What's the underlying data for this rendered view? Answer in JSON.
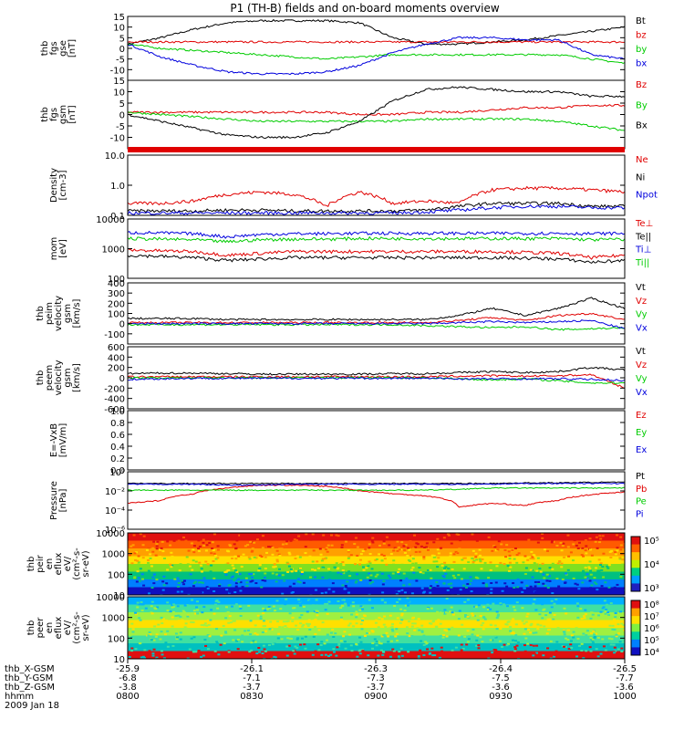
{
  "title": "P1 (TH-B) fields and on-board moments overview",
  "colors": {
    "black": "#000000",
    "red": "#e00000",
    "green": "#00cc00",
    "blue": "#0000dd",
    "frame": "#000000"
  },
  "chart_data": [
    {
      "type": "line",
      "id": "fgs_gse",
      "ylabel": [
        "thb",
        "fgs",
        "gse",
        "[nT]"
      ],
      "ylim": [
        -15,
        15
      ],
      "ticks": [
        -10,
        -5,
        0,
        5,
        10,
        15
      ],
      "series": [
        {
          "name": "Bt",
          "color": "#000000",
          "values": [
            2,
            5,
            9,
            12,
            13,
            13,
            13,
            12,
            5,
            2,
            2,
            3,
            4,
            6,
            8,
            10
          ]
        },
        {
          "name": "bz",
          "color": "#e00000",
          "values": [
            3,
            3,
            3,
            3,
            3,
            3,
            3,
            3,
            3,
            3,
            3,
            3,
            3,
            3,
            3,
            3
          ]
        },
        {
          "name": "by",
          "color": "#00cc00",
          "values": [
            2,
            0,
            -1,
            -2,
            -3,
            -4,
            -5,
            -4,
            -3,
            -3,
            -3,
            -3,
            -3,
            -3,
            -5,
            -7
          ]
        },
        {
          "name": "bx",
          "color": "#0000dd",
          "values": [
            2,
            -4,
            -8,
            -11,
            -12,
            -12,
            -11,
            -8,
            -2,
            2,
            5,
            5,
            4,
            4,
            -3,
            -5
          ]
        }
      ]
    },
    {
      "type": "line",
      "id": "fgs_gsm",
      "ylabel": [
        "thb",
        "fgs",
        "gsm",
        "[nT]"
      ],
      "ylim": [
        -15,
        15
      ],
      "ticks": [
        -10,
        -5,
        0,
        5,
        10,
        15
      ],
      "series": [
        {
          "name": "Bz",
          "color": "#e00000",
          "values": [
            1,
            1,
            1,
            1,
            1,
            1,
            1,
            0,
            0,
            1,
            1,
            2,
            3,
            3,
            4,
            4
          ]
        },
        {
          "name": "By",
          "color": "#00cc00",
          "values": [
            1,
            0,
            -1,
            -2,
            -3,
            -3,
            -3,
            -3,
            -3,
            -2,
            -2,
            -2,
            -2,
            -3,
            -5,
            -7
          ]
        },
        {
          "name": "Bx",
          "color": "#000000",
          "values": [
            0,
            -3,
            -6,
            -9,
            -10,
            -10,
            -8,
            -3,
            6,
            11,
            12,
            11,
            10,
            10,
            8,
            8
          ]
        }
      ]
    },
    {
      "type": "line",
      "id": "density",
      "scale": "log",
      "ylabel": [
        "Density",
        "[cm-3]"
      ],
      "ylim": [
        0.1,
        10
      ],
      "ticks": [
        "0.1",
        "1.0",
        "10.0"
      ],
      "series": [
        {
          "name": "Ne",
          "color": "#e00000",
          "values": [
            0.25,
            0.25,
            0.3,
            0.5,
            0.6,
            0.5,
            0.2,
            0.6,
            0.25,
            0.3,
            0.25,
            0.7,
            0.8,
            0.8,
            0.7,
            0.6
          ]
        },
        {
          "name": "Ni",
          "color": "#000000",
          "values": [
            0.14,
            0.14,
            0.14,
            0.15,
            0.15,
            0.14,
            0.14,
            0.14,
            0.14,
            0.15,
            0.2,
            0.25,
            0.25,
            0.25,
            0.2,
            0.2
          ]
        },
        {
          "name": "Npot",
          "color": "#0000dd",
          "values": [
            0.12,
            0.12,
            0.12,
            0.12,
            0.12,
            0.12,
            0.12,
            0.12,
            0.12,
            0.13,
            0.15,
            0.18,
            0.2,
            0.2,
            0.18,
            0.18
          ]
        }
      ]
    },
    {
      "type": "line",
      "id": "temperature",
      "scale": "log",
      "ylabel": [
        "mom",
        "[eV]"
      ],
      "ylim": [
        100,
        10000
      ],
      "ticks": [
        "100",
        "1000",
        "10000"
      ],
      "series": [
        {
          "name": "Te⊥",
          "color": "#e00000",
          "values": [
            900,
            850,
            800,
            600,
            700,
            800,
            800,
            800,
            800,
            800,
            800,
            800,
            750,
            700,
            500,
            600
          ]
        },
        {
          "name": "Te||",
          "color": "#000000",
          "values": [
            600,
            550,
            500,
            400,
            450,
            500,
            500,
            500,
            500,
            500,
            500,
            500,
            480,
            450,
            350,
            400
          ]
        },
        {
          "name": "Ti⊥",
          "color": "#0000dd",
          "values": [
            3500,
            3400,
            3200,
            2500,
            3000,
            3200,
            3200,
            3300,
            3300,
            3300,
            3300,
            3300,
            3300,
            3300,
            3200,
            3300
          ]
        },
        {
          "name": "Ti||",
          "color": "#00cc00",
          "values": [
            2200,
            2100,
            2000,
            1700,
            2000,
            2100,
            2100,
            2200,
            2200,
            2200,
            2200,
            2200,
            2200,
            2200,
            2000,
            2100
          ]
        }
      ]
    },
    {
      "type": "line",
      "id": "peim_velocity",
      "ylabel": [
        "thb",
        "peim",
        "velocity",
        "gsm",
        "[km/s]"
      ],
      "ylim": [
        -200,
        400
      ],
      "ticks": [
        -100,
        0,
        100,
        200,
        300,
        400
      ],
      "series": [
        {
          "name": "Vt",
          "color": "#000000",
          "values": [
            50,
            50,
            50,
            40,
            40,
            40,
            40,
            40,
            40,
            40,
            80,
            150,
            80,
            150,
            250,
            150
          ]
        },
        {
          "name": "Vz",
          "color": "#e00000",
          "values": [
            10,
            10,
            10,
            10,
            10,
            10,
            10,
            10,
            10,
            10,
            30,
            60,
            30,
            80,
            100,
            40
          ]
        },
        {
          "name": "Vy",
          "color": "#00cc00",
          "values": [
            -10,
            -10,
            -10,
            -10,
            -10,
            -10,
            -10,
            -10,
            -10,
            -20,
            -30,
            -40,
            -30,
            -60,
            -50,
            -40
          ]
        },
        {
          "name": "Vx",
          "color": "#0000dd",
          "values": [
            0,
            0,
            0,
            0,
            0,
            0,
            0,
            0,
            0,
            0,
            10,
            20,
            10,
            20,
            30,
            -50
          ]
        }
      ]
    },
    {
      "type": "line",
      "id": "peem_velocity",
      "ylabel": [
        "thb",
        "peem",
        "velocity",
        "gsm",
        "[km/s]"
      ],
      "ylim": [
        -600,
        600
      ],
      "ticks": [
        -600,
        -400,
        -200,
        0,
        200,
        400,
        600
      ],
      "series": [
        {
          "name": "Vt",
          "color": "#000000",
          "values": [
            80,
            90,
            90,
            80,
            70,
            70,
            70,
            70,
            80,
            80,
            100,
            120,
            100,
            120,
            200,
            150
          ]
        },
        {
          "name": "Vz",
          "color": "#e00000",
          "values": [
            20,
            20,
            20,
            20,
            20,
            20,
            20,
            20,
            20,
            20,
            30,
            40,
            30,
            40,
            60,
            -200
          ]
        },
        {
          "name": "Vy",
          "color": "#00cc00",
          "values": [
            0,
            0,
            0,
            0,
            0,
            0,
            0,
            0,
            0,
            0,
            -20,
            -40,
            -20,
            -60,
            -100,
            -100
          ]
        },
        {
          "name": "Vx",
          "color": "#0000dd",
          "values": [
            -30,
            -20,
            -10,
            -10,
            -10,
            -10,
            -10,
            -10,
            -10,
            -10,
            -20,
            -20,
            -20,
            -20,
            -30,
            -50
          ]
        }
      ]
    },
    {
      "type": "line",
      "id": "e_vxb",
      "ylabel": [
        "E=-VxB",
        "[mV/m]"
      ],
      "ylim": [
        0,
        1
      ],
      "ticks": [
        "0.0",
        "0.2",
        "0.4",
        "0.6",
        "0.8",
        "1.0"
      ],
      "series": [
        {
          "name": "Ez",
          "color": "#e00000",
          "values": []
        },
        {
          "name": "Ey",
          "color": "#00cc00",
          "values": []
        },
        {
          "name": "Ex",
          "color": "#0000dd",
          "values": []
        }
      ]
    },
    {
      "type": "line",
      "id": "pressure",
      "scale": "log",
      "ylabel": [
        "Pressure",
        "[nPa]"
      ],
      "ylim": [
        1e-06,
        1
      ],
      "ticks": [
        "10⁻⁶",
        "10⁻⁴",
        "10⁻²",
        "10⁰"
      ],
      "series": [
        {
          "name": "Pt",
          "color": "#000000",
          "values": [
            0.06,
            0.06,
            0.06,
            0.06,
            0.06,
            0.06,
            0.06,
            0.06,
            0.06,
            0.06,
            0.06,
            0.06,
            0.07,
            0.07,
            0.08,
            0.08
          ]
        },
        {
          "name": "Pb",
          "color": "#e00000",
          "values": [
            0.0005,
            0.001,
            0.005,
            0.02,
            0.04,
            0.04,
            0.03,
            0.01,
            0.005,
            0.003,
            0.0002,
            0.0005,
            0.0003,
            0.001,
            0.004,
            0.008
          ]
        },
        {
          "name": "Pe",
          "color": "#00cc00",
          "values": [
            0.012,
            0.012,
            0.012,
            0.012,
            0.012,
            0.012,
            0.012,
            0.012,
            0.012,
            0.012,
            0.015,
            0.02,
            0.02,
            0.02,
            0.02,
            0.02
          ]
        },
        {
          "name": "Pi",
          "color": "#0000dd",
          "values": [
            0.05,
            0.05,
            0.05,
            0.04,
            0.04,
            0.05,
            0.05,
            0.05,
            0.05,
            0.05,
            0.05,
            0.05,
            0.06,
            0.06,
            0.06,
            0.06
          ]
        }
      ]
    },
    {
      "type": "heatmap",
      "id": "peir_eflux",
      "scale": "log",
      "ylabel": [
        "thb",
        "peir",
        "en",
        "eflux",
        "eV/",
        "(cm²-s-",
        "sr-eV)"
      ],
      "ylim": [
        10,
        10000
      ],
      "ticks": [
        "10",
        "100",
        "1000",
        "10000"
      ],
      "colorbar_ticks": [
        "10³",
        "10⁴",
        "10⁵"
      ],
      "bands": [
        "#e01010",
        "#ff5a00",
        "#ffa000",
        "#ffe000",
        "#80e020",
        "#00c080",
        "#0080ff",
        "#1010c0"
      ]
    },
    {
      "type": "heatmap",
      "id": "peer_eflux",
      "scale": "log",
      "ylabel": [
        "thb",
        "peer",
        "en",
        "eflux",
        "eV/",
        "(cm²-s-",
        "sr-eV)"
      ],
      "ylim": [
        10,
        10000
      ],
      "ticks": [
        "10",
        "100",
        "1000",
        "10000"
      ],
      "colorbar_ticks": [
        "10⁴",
        "10⁵",
        "10⁶",
        "10⁷",
        "10⁸"
      ],
      "bands": [
        "#00b0ff",
        "#40e0a0",
        "#a0f040",
        "#ffe000",
        "#a0f040",
        "#40e0a0",
        "#00c0c0",
        "#e01010"
      ]
    }
  ],
  "axis": {
    "rows": [
      {
        "label": "thb_X-GSM",
        "values": [
          "-25.9",
          "-26.1",
          "-26.3",
          "-26.4",
          "-26.5"
        ]
      },
      {
        "label": "thb_Y-GSM",
        "values": [
          "-6.8",
          "-7.1",
          "-7.3",
          "-7.5",
          "-7.7"
        ]
      },
      {
        "label": "thb_Z-GSM",
        "values": [
          "-3.8",
          "-3.7",
          "-3.7",
          "-3.6",
          "-3.6"
        ]
      },
      {
        "label": "hhmm",
        "values": [
          "0800",
          "0830",
          "0900",
          "0930",
          "1000"
        ]
      }
    ],
    "date": "2009 Jan 18"
  }
}
